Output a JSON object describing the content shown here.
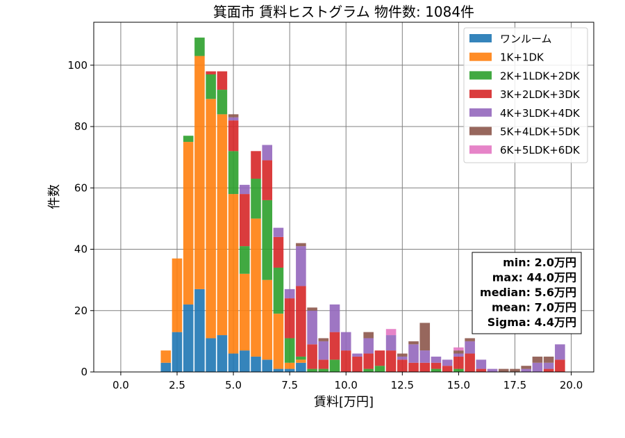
{
  "chart_data": {
    "type": "bar",
    "stacked": true,
    "title": "箕面市 賃料ヒストグラム 物件数: 1084件",
    "xlabel": "賃料[万円]",
    "ylabel": "件数",
    "xlim": [
      -1.2,
      21.0
    ],
    "ylim": [
      0,
      114
    ],
    "grid": true,
    "legend_position": "top-right",
    "xticks": [
      0.0,
      2.5,
      5.0,
      7.5,
      10.0,
      12.5,
      15.0,
      17.5,
      20.0
    ],
    "xtick_labels": [
      "0.0",
      "2.5",
      "5.0",
      "7.5",
      "10.0",
      "12.5",
      "15.0",
      "17.5",
      "20.0"
    ],
    "yticks": [
      0,
      20,
      40,
      60,
      80,
      100
    ],
    "ytick_labels": [
      "0",
      "20",
      "40",
      "60",
      "80",
      "100"
    ],
    "bin_width": 0.5,
    "bin_centers": [
      2.0,
      2.5,
      3.0,
      3.5,
      4.0,
      4.5,
      5.0,
      5.5,
      6.0,
      6.5,
      7.0,
      7.5,
      8.0,
      8.5,
      9.0,
      9.5,
      10.0,
      10.5,
      11.0,
      11.5,
      12.0,
      12.5,
      13.0,
      13.5,
      14.0,
      14.5,
      15.0,
      15.5,
      16.0,
      16.5,
      17.0,
      17.5,
      18.0,
      18.5,
      19.0,
      19.5
    ],
    "series": [
      {
        "name": "ワンルーム",
        "color": "#1f77b4",
        "values": [
          3,
          13,
          22,
          27,
          11,
          12,
          6,
          7,
          5,
          4,
          1,
          1,
          3,
          0,
          0,
          0,
          0,
          0,
          0,
          0,
          0,
          0,
          0,
          0,
          0,
          0,
          0,
          0,
          0,
          0,
          0,
          0,
          0,
          0,
          0,
          0
        ]
      },
      {
        "name": "1K+1DK",
        "color": "#ff7f0e",
        "values": [
          4,
          24,
          53,
          76,
          78,
          72,
          52,
          25,
          45,
          26,
          18,
          2,
          1,
          0,
          0,
          0,
          0,
          0,
          0,
          0,
          0,
          0,
          0,
          0,
          0,
          0,
          0,
          0,
          0,
          0,
          0,
          0,
          0,
          0,
          0,
          0
        ]
      },
      {
        "name": "2K+1LDK+2DK",
        "color": "#2ca02c",
        "values": [
          0,
          0,
          2,
          6,
          8,
          8,
          14,
          9,
          13,
          26,
          15,
          8,
          1,
          1,
          1,
          4,
          0,
          0,
          1,
          2,
          0,
          0,
          0,
          0,
          1,
          0,
          1,
          0,
          0,
          0,
          0,
          0,
          0,
          0,
          0,
          0
        ]
      },
      {
        "name": "3K+2LDK+3DK",
        "color": "#d62728",
        "values": [
          0,
          0,
          0,
          0,
          1,
          6,
          10,
          17,
          9,
          13,
          10,
          13,
          23,
          8,
          3,
          9,
          7,
          5,
          5,
          5,
          7,
          4,
          3,
          3,
          2,
          2,
          4,
          6,
          1,
          0,
          0,
          0,
          0,
          0,
          1,
          4
        ]
      },
      {
        "name": "4K+3LDK+4DK",
        "color": "#9467bd",
        "values": [
          0,
          0,
          0,
          0,
          0,
          0,
          1,
          3,
          0,
          5,
          3,
          3,
          13,
          11,
          6,
          9,
          6,
          1,
          5,
          0,
          5,
          1,
          6,
          4,
          2,
          2,
          1,
          4,
          3,
          1,
          0,
          0,
          1,
          3,
          2,
          5
        ]
      },
      {
        "name": "5K+4LDK+5DK",
        "color": "#8c564b",
        "values": [
          0,
          0,
          0,
          0,
          0,
          0,
          1,
          0,
          0,
          0,
          0,
          0,
          1,
          1,
          1,
          0,
          0,
          0,
          2,
          0,
          0,
          1,
          1,
          9,
          0,
          0,
          1,
          1,
          0,
          0,
          1,
          1,
          1,
          2,
          2,
          0
        ]
      },
      {
        "name": "6K+5LDK+6DK",
        "color": "#e377c2",
        "values": [
          0,
          0,
          0,
          0,
          0,
          0,
          0,
          0,
          0,
          0,
          0,
          0,
          0,
          0,
          0,
          0,
          0,
          0,
          0,
          0,
          2,
          0,
          0,
          0,
          0,
          0,
          1,
          0,
          0,
          0,
          0,
          0,
          0,
          0,
          0,
          0
        ]
      }
    ],
    "stats": [
      "min: 2.0万円",
      "max: 44.0万円",
      "median: 5.6万円",
      "mean: 7.0万円",
      "Sigma: 4.4万円"
    ]
  }
}
